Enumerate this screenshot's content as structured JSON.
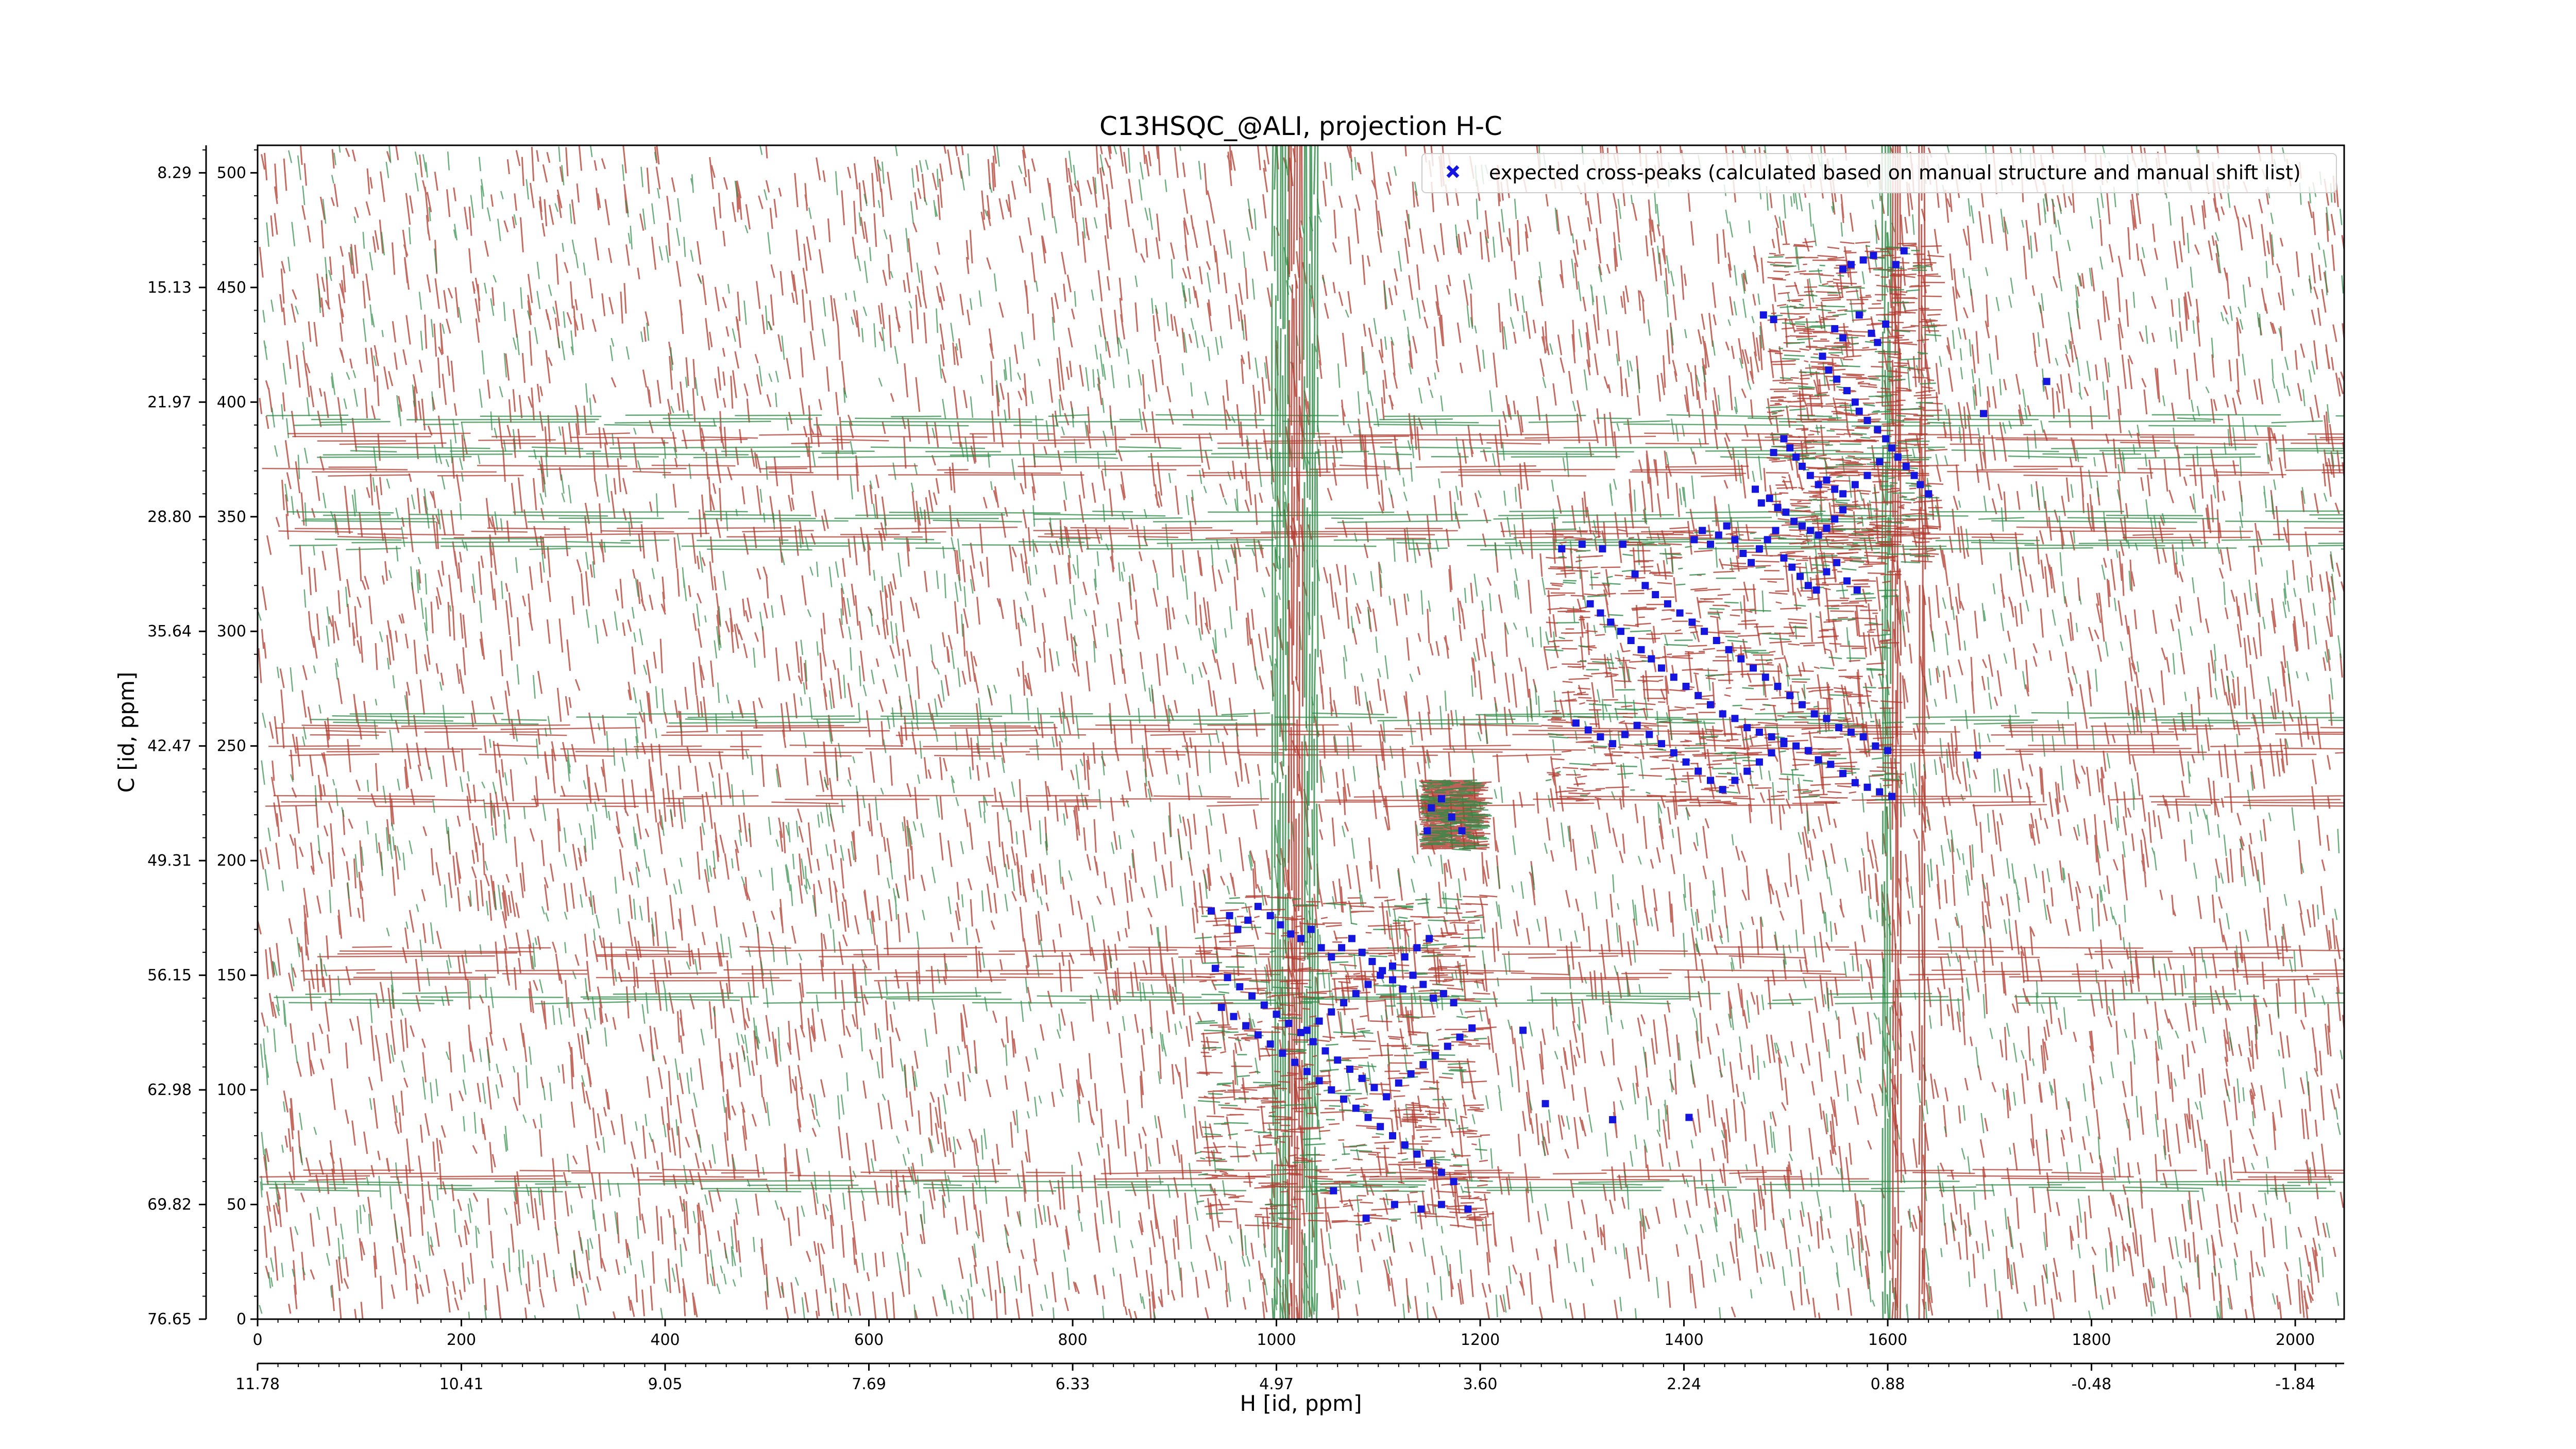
{
  "chart_data": {
    "type": "scatter",
    "title": "C13HSQC_@ALI, projection H-C",
    "xlabel": "H [id, ppm]",
    "ylabel": "C [id, ppm]",
    "x_index_range": [
      0,
      2048
    ],
    "y_index_range": [
      0,
      512
    ],
    "x_index_ticks": [
      "0",
      "200",
      "400",
      "600",
      "800",
      "1000",
      "1200",
      "1400",
      "1600",
      "1800",
      "2000"
    ],
    "y_index_ticks": [
      "0",
      "50",
      "100",
      "150",
      "200",
      "250",
      "300",
      "350",
      "400",
      "450",
      "500"
    ],
    "x_ppm_ticks": [
      "11.78",
      "10.41",
      "9.05",
      "7.69",
      "6.33",
      "4.97",
      "3.60",
      "2.24",
      "0.88",
      "-0.48",
      "-1.84"
    ],
    "y_ppm_ticks": [
      "76.65",
      "69.82",
      "62.98",
      "56.15",
      "49.31",
      "42.47",
      "35.64",
      "28.80",
      "21.97",
      "15.13",
      "8.29"
    ],
    "legend": {
      "label": "expected cross-peaks (calculated based on manual structure and manual shift list)",
      "location": "top-right"
    },
    "colors": {
      "positive_contours": "#b03a2e",
      "negative_contours": "#2e8b46",
      "markers": "#1515e0"
    },
    "series": [
      {
        "name": "expected cross-peaks (calculated based on manual structure and manual shift list)",
        "points": [
          [
            1478,
            438
          ],
          [
            1488,
            436
          ],
          [
            1556,
            458
          ],
          [
            1564,
            460
          ],
          [
            1576,
            462
          ],
          [
            1586,
            464
          ],
          [
            1608,
            460
          ],
          [
            1616,
            466
          ],
          [
            1548,
            432
          ],
          [
            1556,
            428
          ],
          [
            1572,
            438
          ],
          [
            1584,
            430
          ],
          [
            1590,
            426
          ],
          [
            1598,
            434
          ],
          [
            1536,
            420
          ],
          [
            1542,
            414
          ],
          [
            1550,
            410
          ],
          [
            1560,
            405
          ],
          [
            1568,
            400
          ],
          [
            1572,
            396
          ],
          [
            1580,
            392
          ],
          [
            1590,
            388
          ],
          [
            1598,
            384
          ],
          [
            1604,
            380
          ],
          [
            1610,
            376
          ],
          [
            1618,
            372
          ],
          [
            1626,
            368
          ],
          [
            1632,
            364
          ],
          [
            1640,
            360
          ],
          [
            1694,
            395
          ],
          [
            1756,
            409
          ],
          [
            1488,
            378
          ],
          [
            1498,
            384
          ],
          [
            1504,
            380
          ],
          [
            1510,
            376
          ],
          [
            1516,
            372
          ],
          [
            1524,
            368
          ],
          [
            1532,
            364
          ],
          [
            1540,
            366
          ],
          [
            1548,
            362
          ],
          [
            1556,
            360
          ],
          [
            1568,
            364
          ],
          [
            1580,
            368
          ],
          [
            1592,
            374
          ],
          [
            1470,
            362
          ],
          [
            1476,
            356
          ],
          [
            1484,
            358
          ],
          [
            1492,
            354
          ],
          [
            1500,
            352
          ],
          [
            1508,
            348
          ],
          [
            1516,
            346
          ],
          [
            1524,
            344
          ],
          [
            1532,
            342
          ],
          [
            1540,
            345
          ],
          [
            1548,
            349
          ],
          [
            1556,
            353
          ],
          [
            1410,
            340
          ],
          [
            1418,
            344
          ],
          [
            1426,
            338
          ],
          [
            1434,
            342
          ],
          [
            1442,
            346
          ],
          [
            1450,
            340
          ],
          [
            1458,
            334
          ],
          [
            1466,
            330
          ],
          [
            1474,
            336
          ],
          [
            1482,
            340
          ],
          [
            1490,
            344
          ],
          [
            1498,
            332
          ],
          [
            1506,
            328
          ],
          [
            1514,
            324
          ],
          [
            1522,
            320
          ],
          [
            1530,
            318
          ],
          [
            1540,
            326
          ],
          [
            1550,
            330
          ],
          [
            1560,
            322
          ],
          [
            1570,
            318
          ],
          [
            1280,
            336
          ],
          [
            1300,
            338
          ],
          [
            1320,
            336
          ],
          [
            1340,
            338
          ],
          [
            1352,
            325
          ],
          [
            1362,
            320
          ],
          [
            1372,
            316
          ],
          [
            1384,
            312
          ],
          [
            1396,
            308
          ],
          [
            1408,
            304
          ],
          [
            1420,
            300
          ],
          [
            1432,
            296
          ],
          [
            1444,
            292
          ],
          [
            1456,
            288
          ],
          [
            1468,
            284
          ],
          [
            1480,
            280
          ],
          [
            1492,
            276
          ],
          [
            1504,
            272
          ],
          [
            1516,
            268
          ],
          [
            1528,
            264
          ],
          [
            1540,
            262
          ],
          [
            1552,
            258
          ],
          [
            1564,
            256
          ],
          [
            1576,
            254
          ],
          [
            1588,
            250
          ],
          [
            1600,
            248
          ],
          [
            1308,
            312
          ],
          [
            1318,
            308
          ],
          [
            1328,
            304
          ],
          [
            1338,
            300
          ],
          [
            1348,
            296
          ],
          [
            1358,
            292
          ],
          [
            1368,
            288
          ],
          [
            1378,
            284
          ],
          [
            1390,
            280
          ],
          [
            1402,
            276
          ],
          [
            1414,
            272
          ],
          [
            1426,
            268
          ],
          [
            1438,
            264
          ],
          [
            1450,
            262
          ],
          [
            1462,
            258
          ],
          [
            1474,
            256
          ],
          [
            1486,
            254
          ],
          [
            1498,
            252
          ],
          [
            1510,
            250
          ],
          [
            1522,
            248
          ],
          [
            1532,
            244
          ],
          [
            1544,
            242
          ],
          [
            1556,
            238
          ],
          [
            1568,
            234
          ],
          [
            1580,
            232
          ],
          [
            1592,
            230
          ],
          [
            1604,
            228
          ],
          [
            1294,
            260
          ],
          [
            1306,
            257
          ],
          [
            1318,
            254
          ],
          [
            1330,
            251
          ],
          [
            1342,
            255
          ],
          [
            1354,
            259
          ],
          [
            1366,
            255
          ],
          [
            1378,
            251
          ],
          [
            1390,
            247
          ],
          [
            1402,
            243
          ],
          [
            1414,
            239
          ],
          [
            1426,
            235
          ],
          [
            1438,
            231
          ],
          [
            1450,
            235
          ],
          [
            1462,
            239
          ],
          [
            1474,
            243
          ],
          [
            1486,
            247
          ],
          [
            1498,
            251
          ],
          [
            1688,
            246
          ],
          [
            1152,
            223
          ],
          [
            1162,
            227
          ],
          [
            1172,
            219
          ],
          [
            1148,
            213
          ],
          [
            1182,
            213
          ],
          [
            936,
            178
          ],
          [
            954,
            176
          ],
          [
            962,
            170
          ],
          [
            972,
            174
          ],
          [
            982,
            180
          ],
          [
            994,
            176
          ],
          [
            1004,
            172
          ],
          [
            1014,
            168
          ],
          [
            1024,
            166
          ],
          [
            1034,
            170
          ],
          [
            1044,
            162
          ],
          [
            1054,
            158
          ],
          [
            1064,
            162
          ],
          [
            1074,
            166
          ],
          [
            1084,
            160
          ],
          [
            1094,
            156
          ],
          [
            1104,
            152
          ],
          [
            1114,
            148
          ],
          [
            1124,
            144
          ],
          [
            1134,
            150
          ],
          [
            1144,
            146
          ],
          [
            1154,
            140
          ],
          [
            1164,
            142
          ],
          [
            1174,
            138
          ],
          [
            940,
            153
          ],
          [
            952,
            149
          ],
          [
            964,
            145
          ],
          [
            976,
            141
          ],
          [
            988,
            137
          ],
          [
            1000,
            133
          ],
          [
            1012,
            129
          ],
          [
            1024,
            125
          ],
          [
            1036,
            121
          ],
          [
            1048,
            117
          ],
          [
            1060,
            113
          ],
          [
            1072,
            109
          ],
          [
            1084,
            105
          ],
          [
            1096,
            101
          ],
          [
            1108,
            97
          ],
          [
            1120,
            103
          ],
          [
            1132,
            107
          ],
          [
            1144,
            111
          ],
          [
            1156,
            115
          ],
          [
            1168,
            119
          ],
          [
            1180,
            123
          ],
          [
            1192,
            127
          ],
          [
            946,
            136
          ],
          [
            958,
            132
          ],
          [
            970,
            128
          ],
          [
            982,
            124
          ],
          [
            994,
            120
          ],
          [
            1006,
            116
          ],
          [
            1018,
            112
          ],
          [
            1030,
            108
          ],
          [
            1042,
            104
          ],
          [
            1054,
            100
          ],
          [
            1066,
            96
          ],
          [
            1078,
            92
          ],
          [
            1090,
            88
          ],
          [
            1102,
            84
          ],
          [
            1114,
            80
          ],
          [
            1126,
            76
          ],
          [
            1138,
            72
          ],
          [
            1150,
            68
          ],
          [
            1162,
            64
          ],
          [
            1174,
            60
          ],
          [
            1030,
            126
          ],
          [
            1042,
            130
          ],
          [
            1054,
            134
          ],
          [
            1066,
            138
          ],
          [
            1078,
            142
          ],
          [
            1090,
            146
          ],
          [
            1102,
            150
          ],
          [
            1114,
            154
          ],
          [
            1126,
            158
          ],
          [
            1138,
            162
          ],
          [
            1150,
            166
          ],
          [
            1242,
            126
          ],
          [
            1264,
            94
          ],
          [
            1330,
            87
          ],
          [
            1405,
            88
          ],
          [
            1056,
            56
          ],
          [
            1088,
            44
          ],
          [
            1116,
            50
          ],
          [
            1142,
            48
          ],
          [
            1162,
            50
          ],
          [
            1188,
            48
          ]
        ]
      }
    ]
  }
}
